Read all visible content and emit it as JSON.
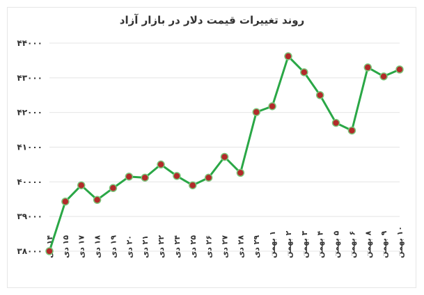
{
  "chart_data": {
    "type": "line",
    "title": "روند تغییرات قیمت دلار در بازار آزاد",
    "xlabel": "",
    "ylabel": "",
    "ylim": [
      38000,
      44000
    ],
    "yticks": [
      38000,
      39000,
      40000,
      41000,
      42000,
      43000,
      44000
    ],
    "ytick_labels": [
      "۳۸۰۰۰",
      "۳۹۰۰۰",
      "۴۰۰۰۰",
      "۴۱۰۰۰",
      "۴۲۰۰۰",
      "۴۳۰۰۰",
      "۴۴۰۰۰"
    ],
    "grid": true,
    "legend": "none",
    "categories": [
      "۱۴ دی",
      "۱۵ دی",
      "۱۷ دی",
      "۱۸ دی",
      "۱۹ دی",
      "۲۰ دی",
      "۲۱ دی",
      "۲۲ دی",
      "۲۴ دی",
      "۲۵ دی",
      "۲۶ دی",
      "۲۷ دی",
      "۲۸ دی",
      "۲۹ دی",
      "۱ بهمن",
      "۲ بهمن",
      "۳ بهمن",
      "۴ بهمن",
      "۵ بهمن",
      "۶ بهمن",
      "۸ بهمن",
      "۹ بهمن",
      "۱۰ بهمن"
    ],
    "series": [
      {
        "values": [
          38000,
          39430,
          39900,
          39480,
          39820,
          40150,
          40120,
          40500,
          40170,
          39900,
          40120,
          40720,
          40260,
          42010,
          42180,
          43620,
          43160,
          42500,
          41700,
          41480,
          43300,
          43040,
          43240
        ]
      }
    ],
    "colors": {
      "line": "#2aa746",
      "marker_fill": "#b22a2a",
      "marker_stroke": "#7cc67c",
      "grid": "#e4e4e4",
      "text": "#333333"
    }
  }
}
